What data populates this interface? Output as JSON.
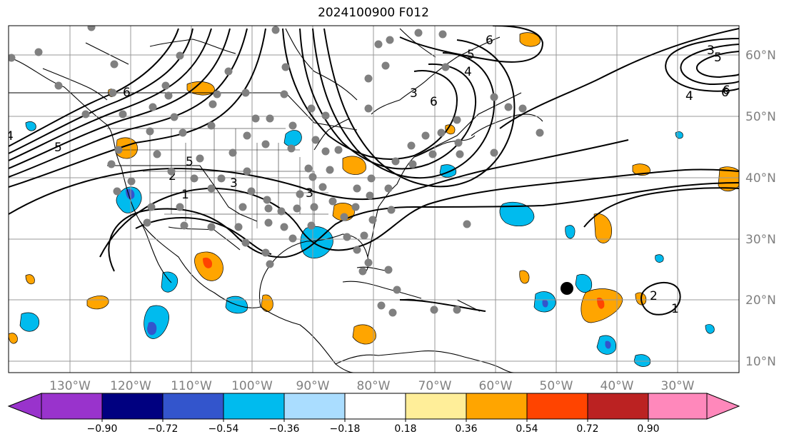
{
  "title": "2024100900 F012",
  "map": {
    "lat_labels": [
      "60°N",
      "50°N",
      "40°N",
      "30°N",
      "20°N",
      "10°N"
    ],
    "lon_labels": [
      "130°W",
      "120°W",
      "110°W",
      "100°W",
      "90°W",
      "80°W",
      "70°W",
      "60°W",
      "50°W",
      "40°W",
      "30°W"
    ],
    "contour_labels": [
      "6",
      "5",
      "4",
      "3",
      "6",
      "5",
      "4",
      "6",
      "3",
      "6",
      "3",
      "2",
      "1",
      "4",
      "5",
      "6",
      "2",
      "1",
      "5",
      "3"
    ]
  },
  "colorbar": {
    "colors": [
      "#9933cc",
      "#000080",
      "#3355cc",
      "#00bbee",
      "#aaddff",
      "#ffffff",
      "#ffee99",
      "#ffa500",
      "#ff4400",
      "#bb2222",
      "#ff88bb"
    ],
    "ticks": [
      "−0.90",
      "−0.72",
      "−0.54",
      "−0.36",
      "−0.18",
      "0.18",
      "0.36",
      "0.54",
      "0.72",
      "0.90"
    ]
  }
}
